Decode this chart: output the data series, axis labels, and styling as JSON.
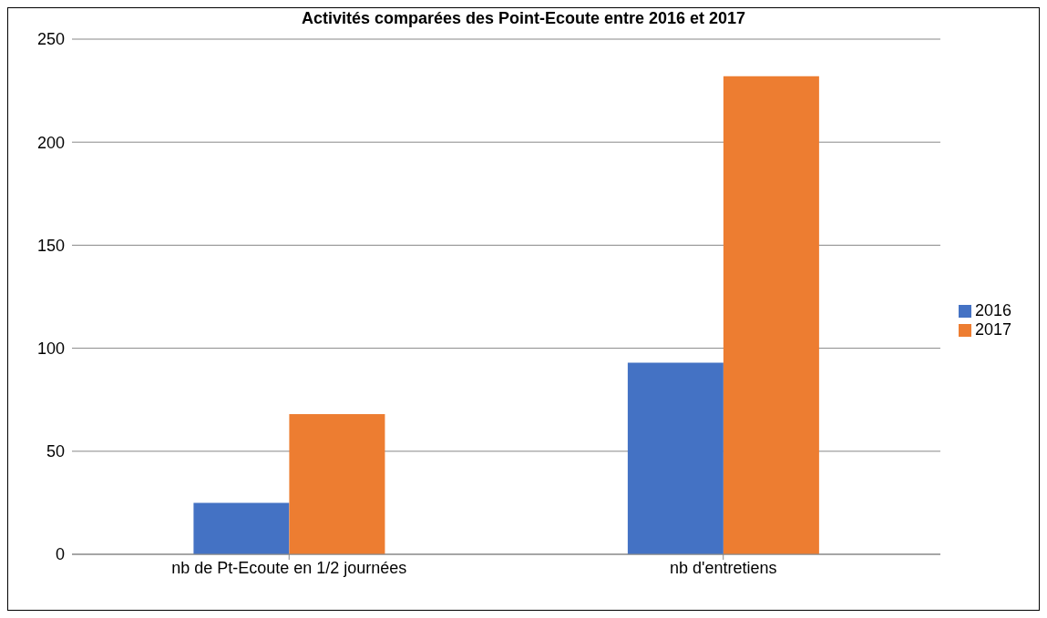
{
  "chart_data": {
    "type": "bar",
    "title": "Activités comparées des Point-Ecoute entre 2016 et 2017",
    "categories": [
      "nb de Pt-Ecoute en 1/2 journées",
      "nb d'entretiens"
    ],
    "series": [
      {
        "name": "2016",
        "color": "#4472c4",
        "values": [
          25,
          93
        ]
      },
      {
        "name": "2017",
        "color": "#ed7d31",
        "values": [
          68,
          232
        ]
      }
    ],
    "ylim": [
      0,
      250
    ],
    "yticks": [
      0,
      50,
      100,
      150,
      200,
      250
    ],
    "grid": "y",
    "legend": "right"
  }
}
